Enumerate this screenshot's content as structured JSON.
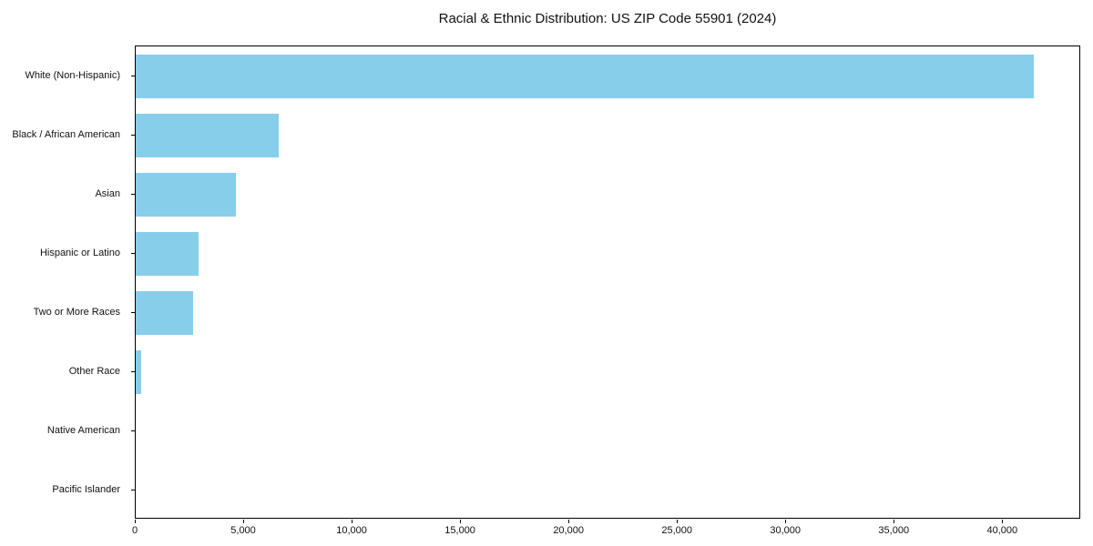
{
  "title": "Racial & Ethnic Distribution: US ZIP Code 55901 (2024)",
  "colors": {
    "bar": "#87CEEB",
    "axis": "#000000",
    "background": "#FFFFFF",
    "text": "#111111"
  },
  "chart_data": {
    "type": "bar",
    "orientation": "horizontal",
    "title": "Racial & Ethnic Distribution: US ZIP Code 55901 (2024)",
    "categories": [
      "White (Non-Hispanic)",
      "Black / African American",
      "Asian",
      "Hispanic or Latino",
      "Two or More Races",
      "Other Race",
      "Native American",
      "Pacific Islander"
    ],
    "values": [
      41500,
      6600,
      4650,
      2900,
      2650,
      270,
      0,
      0
    ],
    "bar_color": "#87CEEB",
    "xlabel": "",
    "ylabel": "",
    "xlim": [
      0,
      43600
    ],
    "x_ticks": [
      0,
      5000,
      10000,
      15000,
      20000,
      25000,
      30000,
      35000,
      40000
    ],
    "x_tick_labels": [
      "0",
      "5,000",
      "10,000",
      "15,000",
      "20,000",
      "25,000",
      "30,000",
      "35,000",
      "40,000"
    ],
    "grid": false,
    "legend": null
  }
}
